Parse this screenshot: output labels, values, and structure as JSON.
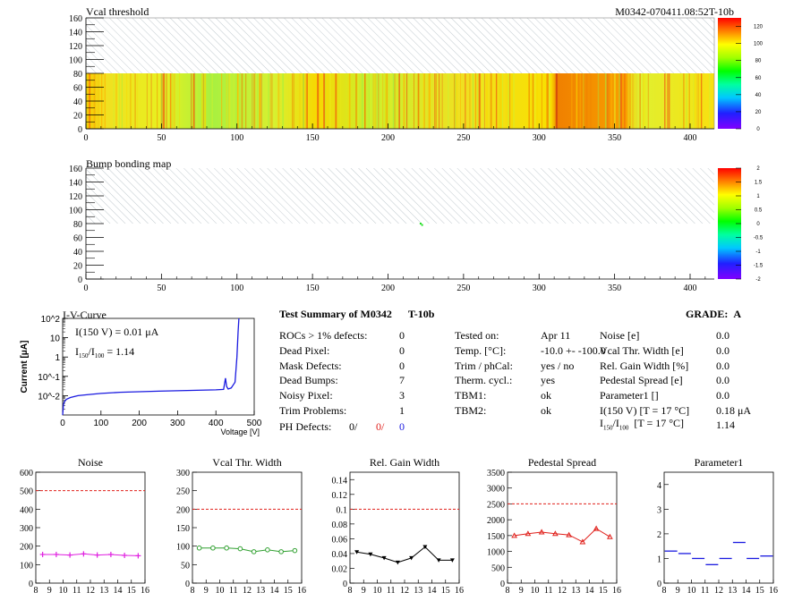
{
  "header": {
    "left_title": "Vcal threshold",
    "right_title": "M0342-070411.08:52T-10b"
  },
  "bump_title": "Bump bonding map",
  "iv": {
    "title": "I-V-Curve",
    "ylabel": "Current [μA]",
    "xlabel": "Voltage [V]",
    "note1": "I(150 V) = 0.01 μA",
    "note2_main": "I",
    "note2_sub1": "150",
    "note2_sep": "/I",
    "note2_sub2": "100",
    "note2_val": "=  1.14"
  },
  "summary": {
    "title": "Test Summary of M0342",
    "code": "T-10b",
    "grade_label": "GRADE:",
    "grade_value": "A",
    "left_rows": [
      {
        "label": "ROCs > 1% defects:",
        "value": "0"
      },
      {
        "label": "Dead Pixel:",
        "value": "0"
      },
      {
        "label": "Mask Defects:",
        "value": "0"
      },
      {
        "label": "Dead Bumps:",
        "value": "7"
      },
      {
        "label": "Noisy Pixel:",
        "value": "3"
      },
      {
        "label": "Trim Problems:",
        "value": "1"
      }
    ],
    "ph_label": "PH Defects:",
    "ph_values": [
      "0/",
      "0/",
      "0"
    ],
    "mid_rows": [
      {
        "label": "Tested on:",
        "value": "Apr 11"
      },
      {
        "label": "Temp. [°C]:",
        "value": "-10.0 +- -100.0"
      },
      {
        "label": "Trim / phCal:",
        "value": "yes / no"
      },
      {
        "label": "Therm. cycl.:",
        "value": "yes"
      },
      {
        "label": "TBM1:",
        "value": "ok"
      },
      {
        "label": "TBM2:",
        "value": "ok"
      }
    ],
    "right_rows": [
      {
        "label": "Noise [e]",
        "value": "0.0"
      },
      {
        "label": "Vcal Thr. Width [e]",
        "value": "0.0"
      },
      {
        "label": "Rel. Gain Width [%]",
        "value": "0.0"
      },
      {
        "label": "Pedestal Spread [e]",
        "value": "0.0"
      },
      {
        "label": "Parameter1 []",
        "value": "0.0"
      },
      {
        "label": "I(150 V) [T = 17 °C]",
        "value": "0.18 μA"
      }
    ],
    "ratio_label_main": "I",
    "ratio_sub1": "150",
    "ratio_sep": "/I",
    "ratio_sub2": "100",
    "ratio_tail": "  [T = 17 °C]",
    "ratio_value": "1.14"
  },
  "colors": {
    "red": "#e0201b",
    "blue": "#1a1ae0",
    "magenta": "#e020e0",
    "green": "#30a030",
    "black": "#000000"
  },
  "chart_data": [
    {
      "type": "heatmap",
      "title": "Vcal threshold",
      "x_ticks": [
        "0",
        "50",
        "100",
        "150",
        "200",
        "250",
        "300",
        "350",
        "400"
      ],
      "y_ticks": [
        "0",
        "20",
        "40",
        "60",
        "80",
        "100",
        "120",
        "140",
        "160"
      ],
      "xlim": [
        0,
        416
      ],
      "ylim": [
        0,
        160
      ],
      "data_rows": [
        0,
        80
      ],
      "colorbar_ticks": [
        "0",
        "20",
        "40",
        "60",
        "80",
        "100",
        "120"
      ],
      "colorbar_range": [
        0,
        130
      ]
    },
    {
      "type": "heatmap",
      "title": "Bump bonding map",
      "x_ticks": [
        "0",
        "50",
        "100",
        "150",
        "200",
        "250",
        "300",
        "350",
        "400"
      ],
      "y_ticks": [
        "0",
        "20",
        "40",
        "60",
        "80",
        "100",
        "120",
        "140",
        "160"
      ],
      "xlim": [
        0,
        416
      ],
      "ylim": [
        0,
        160
      ],
      "points": [
        [
          221,
          80
        ],
        [
          222,
          78
        ]
      ],
      "colorbar_ticks": [
        "-2",
        "-1.5",
        "-1",
        "-0.5",
        "0",
        "0.5",
        "1",
        "1.5",
        "2"
      ],
      "colorbar_range": [
        -2,
        2
      ]
    },
    {
      "type": "line",
      "title": "I-V-Curve",
      "xlabel": "Voltage [V]",
      "ylabel": "Current [μA]",
      "xlim": [
        0,
        500
      ],
      "ylim_log": [
        0.001,
        100
      ],
      "x_ticks": [
        "0",
        "100",
        "200",
        "300",
        "400",
        "500"
      ],
      "y_ticks": [
        "10^-2",
        "10^-1",
        "1",
        "10",
        "10^2"
      ],
      "x": [
        0,
        2,
        5,
        10,
        20,
        40,
        60,
        100,
        150,
        200,
        250,
        300,
        350,
        400,
        420,
        425,
        428,
        432,
        440,
        450,
        455,
        458,
        460
      ],
      "y": [
        0.001,
        0.0035,
        0.005,
        0.0065,
        0.008,
        0.01,
        0.011,
        0.013,
        0.015,
        0.016,
        0.017,
        0.018,
        0.019,
        0.02,
        0.021,
        0.08,
        0.03,
        0.022,
        0.025,
        0.05,
        1.0,
        20,
        100
      ]
    },
    {
      "type": "line",
      "title": "Noise",
      "xlim": [
        8,
        16
      ],
      "ylim": [
        0,
        600
      ],
      "x_ticks": [
        "8",
        "9",
        "10",
        "11",
        "12",
        "13",
        "14",
        "15",
        "16"
      ],
      "y_ticks": [
        "0",
        "100",
        "200",
        "300",
        "400",
        "500",
        "600"
      ],
      "threshold": 500,
      "marker": "plus",
      "x": [
        8.5,
        9.5,
        10.5,
        11.5,
        12.5,
        13.5,
        14.5,
        15.5
      ],
      "y": [
        155,
        155,
        152,
        158,
        152,
        155,
        150,
        148
      ]
    },
    {
      "type": "line",
      "title": "Vcal Thr. Width",
      "xlim": [
        8,
        16
      ],
      "ylim": [
        0,
        300
      ],
      "x_ticks": [
        "8",
        "9",
        "10",
        "11",
        "12",
        "13",
        "14",
        "15",
        "16"
      ],
      "y_ticks": [
        "0",
        "50",
        "100",
        "150",
        "200",
        "250",
        "300"
      ],
      "threshold": 200,
      "marker": "circle",
      "x": [
        8.5,
        9.5,
        10.5,
        11.5,
        12.5,
        13.5,
        14.5,
        15.5
      ],
      "y": [
        95,
        95,
        95,
        93,
        85,
        90,
        85,
        88
      ]
    },
    {
      "type": "line",
      "title": "Rel. Gain Width",
      "xlim": [
        8,
        16
      ],
      "ylim": [
        0,
        0.15
      ],
      "x_ticks": [
        "8",
        "9",
        "10",
        "11",
        "12",
        "13",
        "14",
        "15",
        "16"
      ],
      "y_ticks": [
        "0",
        "0.02",
        "0.04",
        "0.06",
        "0.08",
        "0.1",
        "0.12",
        "0.14"
      ],
      "threshold": 0.1,
      "marker": "triangle-down",
      "x": [
        8.5,
        9.5,
        10.5,
        11.5,
        12.5,
        13.5,
        14.5,
        15.5
      ],
      "y": [
        0.042,
        0.039,
        0.034,
        0.028,
        0.034,
        0.049,
        0.031,
        0.031
      ]
    },
    {
      "type": "line",
      "title": "Pedestal Spread",
      "xlim": [
        8,
        16
      ],
      "ylim": [
        0,
        3500
      ],
      "x_ticks": [
        "8",
        "9",
        "10",
        "11",
        "12",
        "13",
        "14",
        "15",
        "16"
      ],
      "y_ticks": [
        "0",
        "500",
        "1000",
        "1500",
        "2000",
        "2500",
        "3000",
        "3500"
      ],
      "threshold": 2500,
      "marker": "triangle-up",
      "x": [
        8.5,
        9.5,
        10.5,
        11.5,
        12.5,
        13.5,
        14.5,
        15.5
      ],
      "y": [
        1500,
        1560,
        1610,
        1560,
        1520,
        1300,
        1720,
        1460
      ]
    },
    {
      "type": "line",
      "title": "Parameter1",
      "xlim": [
        8,
        16
      ],
      "ylim": [
        0,
        4.5
      ],
      "x_ticks": [
        "8",
        "9",
        "10",
        "11",
        "12",
        "13",
        "14",
        "15",
        "16"
      ],
      "y_ticks": [
        "0",
        "1",
        "2",
        "3",
        "4"
      ],
      "marker": "hbar",
      "x": [
        8.5,
        9.5,
        10.5,
        11.5,
        12.5,
        13.5,
        14.5,
        15.5
      ],
      "y": [
        1.3,
        1.2,
        1.0,
        0.75,
        1.0,
        1.65,
        1.0,
        1.1
      ]
    }
  ]
}
